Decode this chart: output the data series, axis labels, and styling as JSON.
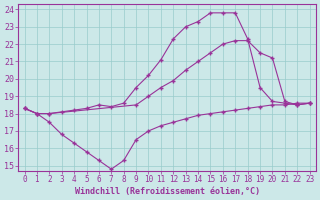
{
  "bg_color": "#cce8e8",
  "line_color": "#993399",
  "grid_color": "#99cccc",
  "xlabel": "Windchill (Refroidissement éolien,°C)",
  "xlabel_color": "#993399",
  "xlim_min": -0.5,
  "xlim_max": 23.5,
  "ylim_min": 14.7,
  "ylim_max": 24.3,
  "yticks": [
    15,
    16,
    17,
    18,
    19,
    20,
    21,
    22,
    23,
    24
  ],
  "xticks": [
    0,
    1,
    2,
    3,
    4,
    5,
    6,
    7,
    8,
    9,
    10,
    11,
    12,
    13,
    14,
    15,
    16,
    17,
    18,
    19,
    20,
    21,
    22,
    23
  ],
  "line1_x": [
    0,
    1,
    2,
    3,
    4,
    5,
    6,
    7,
    8,
    9,
    10,
    11,
    12,
    13,
    14,
    15,
    16,
    17,
    18,
    19,
    20,
    21,
    22,
    23
  ],
  "line1_y": [
    18.3,
    18.0,
    17.5,
    16.8,
    16.3,
    15.8,
    15.3,
    14.8,
    15.3,
    16.5,
    17.0,
    17.3,
    17.5,
    17.7,
    17.9,
    18.0,
    18.1,
    18.2,
    18.3,
    18.4,
    18.5,
    18.5,
    18.6,
    18.6
  ],
  "line2_x": [
    0,
    1,
    2,
    9,
    10,
    11,
    12,
    13,
    14,
    15,
    16,
    17,
    18,
    19,
    20,
    21,
    22,
    23
  ],
  "line2_y": [
    18.3,
    18.0,
    18.0,
    18.5,
    19.0,
    19.5,
    19.9,
    20.5,
    21.0,
    21.5,
    22.0,
    22.2,
    22.2,
    21.5,
    21.2,
    18.7,
    18.5,
    18.6
  ],
  "line3_x": [
    0,
    1,
    2,
    3,
    4,
    5,
    6,
    7,
    8,
    9,
    10,
    11,
    12,
    13,
    14,
    15,
    16,
    17,
    18,
    19,
    20,
    21,
    22,
    23
  ],
  "line3_y": [
    18.3,
    18.0,
    18.0,
    18.1,
    18.2,
    18.3,
    18.5,
    18.4,
    18.6,
    19.5,
    20.2,
    21.1,
    22.3,
    23.0,
    23.3,
    23.8,
    23.8,
    23.8,
    22.3,
    19.5,
    18.7,
    18.6,
    18.5,
    18.6
  ]
}
